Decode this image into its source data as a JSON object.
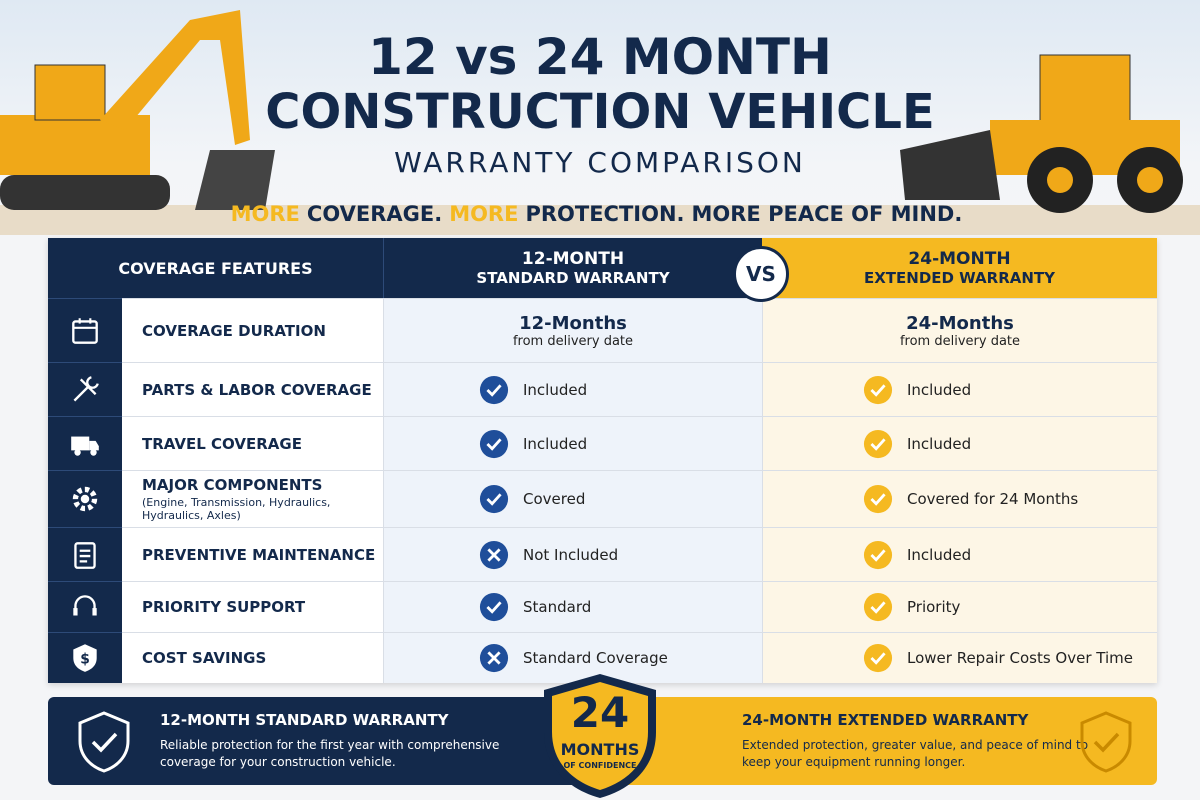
{
  "header": {
    "title_line1": "12 vs 24 MONTH",
    "title_line2": "CONSTRUCTION VEHICLE",
    "subtitle": "WARRANTY COMPARISON",
    "tagline": [
      "MORE",
      "COVERAGE.",
      "MORE",
      "PROTECTION.",
      "MORE PEACE OF MIND."
    ]
  },
  "table": {
    "header": {
      "features": "COVERAGE FEATURES",
      "standard": [
        "12-MONTH",
        "STANDARD WARRANTY"
      ],
      "vs": "VS",
      "extended": [
        "24-MONTH",
        "EXTENDED WARRANTY"
      ]
    },
    "rows": [
      {
        "feature": "COVERAGE DURATION",
        "standard": "12-Months",
        "standard_note": "from delivery date",
        "extended": "24-Months",
        "extended_note": "from delivery date"
      },
      {
        "feature": "PARTS & LABOR COVERAGE",
        "standard": "Included",
        "extended": "Included"
      },
      {
        "feature": "TRAVEL COVERAGE",
        "standard": "Included",
        "extended": "Included"
      },
      {
        "feature": "MAJOR COMPONENTS",
        "note": "(Engine, Transmission, Hydraulics, Hydraulics, Axles)",
        "standard": "Covered",
        "extended": "Covered for 24 Months"
      },
      {
        "feature": "PREVENTIVE MAINTENANCE",
        "standard": "Not Included",
        "extended": "Included"
      },
      {
        "feature": "PRIORITY SUPPORT",
        "standard": "Standard",
        "extended": "Priority"
      },
      {
        "feature": "COST SAVINGS",
        "standard": "Standard Coverage",
        "extended": "Lower Repair Costs Over Time"
      }
    ]
  },
  "footer": {
    "standard_title": "12-MONTH STANDARD WARRANTY",
    "standard_text": "Reliable protection for the first year with comprehensive coverage for your construction vehicle.",
    "badge": [
      "24",
      "MONTHS",
      "OF CONFIDENCE"
    ],
    "extended_title": "24-MONTH EXTENDED WARRANTY",
    "extended_text": "Extended protection, greater value, and peace of mind to keep your equipment running longer."
  }
}
